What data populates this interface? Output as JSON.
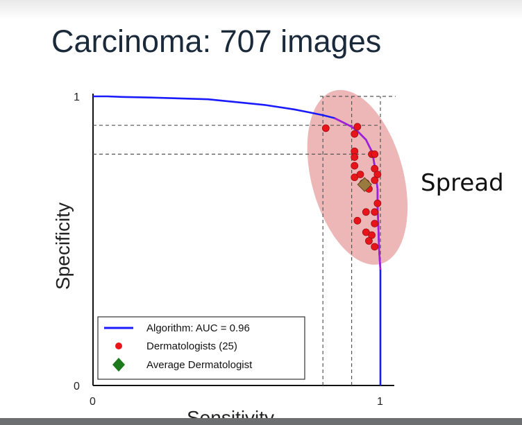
{
  "title": "Carcinoma: 707 images",
  "annotation": "Spread",
  "colors": {
    "algorithm": "#1a1aff",
    "algorithm_highlight": "#a21fd6",
    "dermatologist": "#e8141a",
    "average": "#9a7a3e",
    "legend_average": "#1c7a1c",
    "spread_fill": "#e79b9b"
  },
  "chart_data": {
    "type": "scatter",
    "xlabel": "Sensitivity",
    "ylabel": "Specificity",
    "xlim": [
      0,
      1
    ],
    "ylim": [
      0,
      1
    ],
    "x_ticks": [
      "0",
      "1"
    ],
    "y_ticks": [
      "0",
      "1"
    ],
    "grid": false,
    "legend_position": "bottom-left",
    "series": [
      {
        "name": "Algorithm: AUC = 0.96",
        "kind": "line",
        "x": [
          0,
          0.05,
          0.1,
          0.2,
          0.3,
          0.4,
          0.5,
          0.6,
          0.7,
          0.75,
          0.8,
          0.84,
          0.87,
          0.9,
          0.92,
          0.94,
          0.95,
          0.96,
          0.97,
          0.975,
          0.98,
          0.985,
          0.99,
          0.99,
          0.993,
          0.995,
          1,
          1
        ],
        "y": [
          1,
          1,
          0.998,
          0.996,
          0.993,
          0.99,
          0.98,
          0.97,
          0.955,
          0.945,
          0.935,
          0.925,
          0.91,
          0.895,
          0.88,
          0.86,
          0.85,
          0.83,
          0.81,
          0.79,
          0.76,
          0.72,
          0.68,
          0.62,
          0.55,
          0.48,
          0.4,
          0
        ]
      },
      {
        "name": "Dermatologists (25)",
        "kind": "points",
        "points": [
          [
            0.81,
            0.89
          ],
          [
            0.92,
            0.895
          ],
          [
            0.91,
            0.87
          ],
          [
            0.91,
            0.81
          ],
          [
            0.91,
            0.79
          ],
          [
            0.91,
            0.76
          ],
          [
            0.91,
            0.72
          ],
          [
            0.93,
            0.73
          ],
          [
            0.94,
            0.7
          ],
          [
            0.97,
            0.8
          ],
          [
            0.98,
            0.8
          ],
          [
            0.98,
            0.75
          ],
          [
            0.99,
            0.73
          ],
          [
            0.98,
            0.71
          ],
          [
            0.99,
            0.63
          ],
          [
            0.98,
            0.6
          ],
          [
            0.95,
            0.6
          ],
          [
            0.92,
            0.57
          ],
          [
            0.98,
            0.56
          ],
          [
            0.95,
            0.53
          ],
          [
            0.97,
            0.52
          ],
          [
            0.96,
            0.5
          ],
          [
            0.98,
            0.48
          ],
          [
            0.95,
            0.7
          ],
          [
            0.96,
            0.68
          ]
        ]
      },
      {
        "name": "Average Dermatologist",
        "kind": "marker",
        "points": [
          [
            0.945,
            0.695
          ]
        ]
      }
    ],
    "reference_lines": {
      "x": [
        0.8,
        0.9,
        1.0
      ],
      "y": [
        0.9,
        0.8,
        1.0
      ]
    },
    "spread_region": {
      "center": [
        0.92,
        0.72
      ],
      "semi_x": 0.16,
      "semi_y": 0.31,
      "rotation_deg": -15
    }
  }
}
